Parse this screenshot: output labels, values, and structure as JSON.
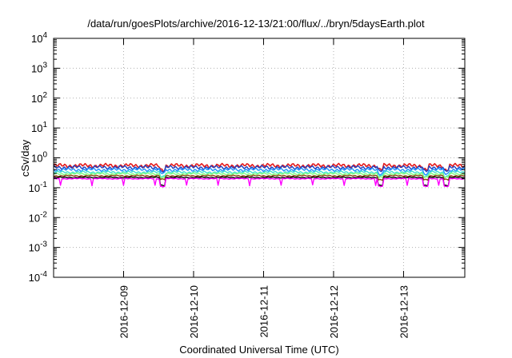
{
  "chart_data": {
    "type": "line",
    "title": "/data/run/goesPlots/archive/2016-12-13/21:00/flux/../bryn/5daysEarth.plot",
    "xlabel": "Coordinated Universal Time (UTC)",
    "ylabel": "cSv/day",
    "yscale": "log",
    "ylim": [
      0.0001,
      10000
    ],
    "xlim": [
      "2016-12-08T00:00",
      "2016-12-13T21:00"
    ],
    "grid": true,
    "y_ticks": [
      {
        "value": 0.0001,
        "base": "10",
        "exp": "-4"
      },
      {
        "value": 0.001,
        "base": "10",
        "exp": "-3"
      },
      {
        "value": 0.01,
        "base": "10",
        "exp": "-2"
      },
      {
        "value": 0.1,
        "base": "10",
        "exp": "-1"
      },
      {
        "value": 1,
        "base": "10",
        "exp": "0"
      },
      {
        "value": 10,
        "base": "10",
        "exp": "1"
      },
      {
        "value": 100,
        "base": "10",
        "exp": "2"
      },
      {
        "value": 1000,
        "base": "10",
        "exp": "3"
      },
      {
        "value": 10000,
        "base": "10",
        "exp": "4"
      }
    ],
    "x_ticks": [
      "2016-12-09",
      "2016-12-10",
      "2016-12-11",
      "2016-12-12",
      "2016-12-13"
    ],
    "series": [
      {
        "color": "#e41a1c",
        "level": 0.55,
        "amp": 0.18
      },
      {
        "color": "#1f3fbf",
        "level": 0.48,
        "amp": 0.16
      },
      {
        "color": "#1e90ff",
        "level": 0.4,
        "amp": 0.14
      },
      {
        "color": "#40e0d0",
        "level": 0.33,
        "amp": 0.1
      },
      {
        "color": "#7fff7f",
        "level": 0.29,
        "amp": 0.08
      },
      {
        "color": "#8b4513",
        "level": 0.25,
        "amp": 0.06
      },
      {
        "color": "#000000",
        "level": 0.22,
        "amp": 0.05
      },
      {
        "color": "#ff00ff",
        "level": 0.2,
        "amp": 0.04
      }
    ]
  }
}
